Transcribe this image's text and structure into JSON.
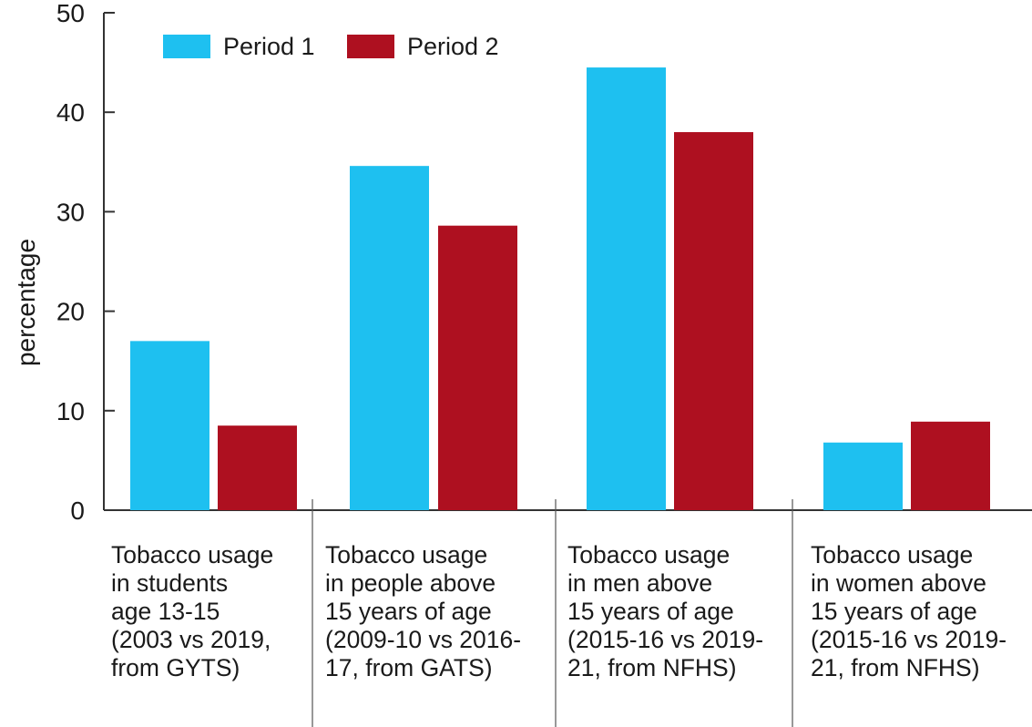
{
  "chart_data": {
    "type": "bar",
    "ylabel": "percentage",
    "xlabel": "",
    "ylim": [
      0,
      50
    ],
    "yticks": [
      0,
      10,
      20,
      30,
      40,
      50
    ],
    "legend_position": "top-left",
    "grid": false,
    "categories": [
      [
        "Tobacco usage",
        "in students",
        "age 13-15",
        "(2003 vs 2019,",
        "from GYTS)"
      ],
      [
        "Tobacco usage",
        "in people above",
        "15 years of age",
        "(2009-10 vs 2016-",
        "17, from GATS)"
      ],
      [
        "Tobacco usage",
        "in men above",
        "15 years of age",
        "(2015-16 vs 2019-",
        "21, from NFHS)"
      ],
      [
        "Tobacco usage",
        "in women above",
        "15 years of age",
        "(2015-16 vs 2019-",
        "21, from NFHS)"
      ]
    ],
    "series": [
      {
        "name": "Period 1",
        "color": "#1ec0f0",
        "values": [
          17.0,
          34.6,
          44.5,
          6.8
        ]
      },
      {
        "name": "Period 2",
        "color": "#ae1020",
        "values": [
          8.5,
          28.6,
          38.0,
          8.9
        ]
      }
    ]
  }
}
